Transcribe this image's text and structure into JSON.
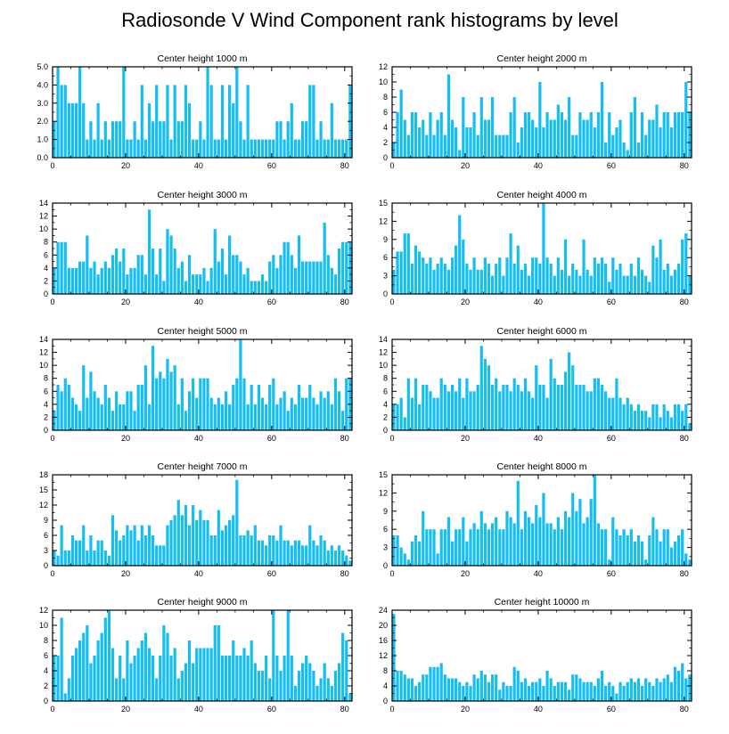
{
  "title": "Radiosonde V Wind Component rank histograms by level",
  "bar_color": "#14BEF2",
  "chart_data": [
    {
      "type": "bar",
      "title": "Center height 1000 m",
      "xlim": [
        0,
        82
      ],
      "ylim": [
        0,
        5
      ],
      "xticks": [
        0,
        20,
        40,
        60,
        80
      ],
      "yticks": [
        0,
        1,
        2,
        3,
        4,
        5
      ],
      "ytick_labels": [
        "0.0",
        "1.0",
        "2.0",
        "3.0",
        "4.0",
        "5.0"
      ],
      "yaxis_side": "left",
      "values": [
        2,
        5,
        4,
        4,
        3,
        3,
        3,
        5,
        3,
        1,
        2,
        1,
        3,
        1,
        2,
        1,
        2,
        2,
        2,
        5,
        1,
        1,
        2,
        1,
        4,
        1,
        3,
        2,
        4,
        2,
        2,
        4,
        1,
        4,
        2,
        2,
        4,
        3,
        1,
        1,
        2,
        1,
        5,
        4,
        1,
        1,
        4,
        1,
        4,
        3,
        5,
        2,
        1,
        4,
        1,
        1,
        1,
        1,
        1,
        1,
        1,
        2,
        2,
        1,
        2,
        3,
        1,
        1,
        2,
        2,
        4,
        4,
        1,
        2,
        1,
        1,
        3,
        1,
        1,
        1,
        1,
        4
      ]
    },
    {
      "type": "bar",
      "title": "Center height 2000 m",
      "xlim": [
        0,
        82
      ],
      "ylim": [
        0,
        12
      ],
      "xticks": [
        0,
        20,
        40,
        60,
        80
      ],
      "yticks": [
        0,
        2,
        4,
        6,
        8,
        10,
        12
      ],
      "ytick_labels": [
        "0",
        "2",
        "4",
        "6",
        "8",
        "10",
        "12"
      ],
      "yaxis_side": "left",
      "values": [
        2,
        6,
        9,
        5,
        3,
        6,
        6,
        4,
        5,
        3,
        6,
        3,
        5,
        6,
        3,
        11,
        5,
        4,
        1,
        8,
        4,
        4,
        6,
        3,
        8,
        5,
        5,
        8,
        3,
        3,
        3,
        3,
        6,
        8,
        2,
        4,
        6,
        6,
        5,
        4,
        10,
        4,
        6,
        5,
        5,
        7,
        6,
        5,
        8,
        3,
        3,
        6,
        5,
        5,
        6,
        4,
        6,
        10,
        2,
        6,
        3,
        4,
        5,
        2,
        1,
        6,
        8,
        2,
        6,
        3,
        5,
        5,
        7,
        4,
        6,
        6,
        4,
        6,
        6,
        6,
        10,
        6
      ]
    },
    {
      "type": "bar",
      "title": "Center height 3000 m",
      "xlim": [
        0,
        82
      ],
      "ylim": [
        0,
        14
      ],
      "xticks": [
        0,
        20,
        40,
        60,
        80
      ],
      "yticks": [
        0,
        2,
        4,
        6,
        8,
        10,
        12,
        14
      ],
      "ytick_labels": [
        "0",
        "2",
        "4",
        "6",
        "8",
        "10",
        "12",
        "14"
      ],
      "yaxis_side": "left",
      "values": [
        4,
        8,
        8,
        8,
        4,
        4,
        4,
        5,
        5,
        9,
        4,
        5,
        3,
        4,
        5,
        4,
        6,
        7,
        5,
        7,
        3,
        4,
        4,
        6,
        6,
        3,
        13,
        7,
        3,
        7,
        2,
        10,
        9,
        7,
        4,
        5,
        2,
        6,
        3,
        3,
        3,
        4,
        2,
        4,
        10,
        5,
        7,
        3,
        9,
        6,
        6,
        5,
        3,
        4,
        2,
        2,
        2,
        3,
        2,
        5,
        6,
        4,
        6,
        8,
        8,
        6,
        4,
        9,
        5,
        5,
        5,
        5,
        5,
        5,
        11,
        6,
        4,
        3,
        7,
        8,
        8,
        8
      ]
    },
    {
      "type": "bar",
      "title": "Center height 4000 m",
      "xlim": [
        0,
        82
      ],
      "ylim": [
        0,
        15
      ],
      "xticks": [
        0,
        20,
        40,
        60,
        80
      ],
      "yticks": [
        0,
        3,
        6,
        9,
        12,
        15
      ],
      "ytick_labels": [
        "0",
        "3",
        "6",
        "9",
        "12",
        "15"
      ],
      "yaxis_side": "left",
      "values": [
        4,
        7,
        7,
        10,
        10,
        5,
        8,
        7,
        6,
        5,
        6,
        4,
        5,
        6,
        5,
        4,
        6,
        8,
        13,
        9,
        5,
        4,
        6,
        4,
        4,
        6,
        5,
        3,
        5,
        6,
        3,
        6,
        10,
        5,
        8,
        4,
        5,
        3,
        6,
        6,
        5,
        15,
        6,
        5,
        3,
        6,
        4,
        9,
        3,
        5,
        4,
        3,
        9,
        4,
        3,
        6,
        5,
        6,
        5,
        2,
        6,
        4,
        5,
        3,
        3,
        5,
        3,
        6,
        4,
        3,
        2,
        8,
        6,
        9,
        4,
        5,
        3,
        4,
        5,
        9,
        10,
        3
      ]
    },
    {
      "type": "bar",
      "title": "Center height 5000 m",
      "xlim": [
        0,
        82
      ],
      "ylim": [
        0,
        14
      ],
      "xticks": [
        0,
        20,
        40,
        60,
        80
      ],
      "yticks": [
        0,
        2,
        4,
        6,
        8,
        10,
        12,
        14
      ],
      "ytick_labels": [
        "0",
        "2",
        "4",
        "6",
        "8",
        "10",
        "12",
        "14"
      ],
      "yaxis_side": "left",
      "values": [
        3,
        7,
        6,
        8,
        7,
        5,
        4,
        3,
        10,
        5,
        9,
        6,
        5,
        4,
        7,
        5,
        3,
        6,
        4,
        4,
        6,
        6,
        3,
        7,
        7,
        10,
        4,
        13,
        8,
        9,
        8,
        11,
        9,
        10,
        4,
        8,
        3,
        6,
        8,
        5,
        8,
        8,
        8,
        5,
        4,
        5,
        4,
        6,
        4,
        7,
        8,
        14,
        8,
        4,
        7,
        4,
        7,
        5,
        4,
        7,
        8,
        4,
        5,
        6,
        3,
        5,
        4,
        7,
        5,
        5,
        7,
        5,
        4,
        6,
        5,
        6,
        4,
        8,
        6,
        3,
        8,
        8
      ]
    },
    {
      "type": "bar",
      "title": "Center height 6000 m",
      "xlim": [
        0,
        82
      ],
      "ylim": [
        0,
        14
      ],
      "xticks": [
        0,
        20,
        40,
        60,
        80
      ],
      "yticks": [
        0,
        2,
        4,
        6,
        8,
        10,
        12,
        14
      ],
      "ytick_labels": [
        "0",
        "2",
        "4",
        "6",
        "8",
        "10",
        "12",
        "14"
      ],
      "yaxis_side": "left",
      "values": [
        4,
        4,
        5,
        2,
        8,
        5,
        8,
        4,
        7,
        7,
        6,
        5,
        5,
        8,
        7,
        6,
        7,
        6,
        8,
        5,
        8,
        6,
        6,
        7,
        13,
        11,
        10,
        7,
        8,
        6,
        7,
        7,
        6,
        8,
        7,
        6,
        8,
        6,
        5,
        10,
        7,
        7,
        5,
        11,
        8,
        7,
        7,
        9,
        12,
        10,
        7,
        7,
        7,
        6,
        6,
        8,
        8,
        7,
        6,
        5,
        5,
        8,
        5,
        4,
        5,
        4,
        3,
        4,
        3,
        3,
        2,
        4,
        4,
        2,
        4,
        3,
        2,
        4,
        4,
        3,
        4,
        1
      ]
    },
    {
      "type": "bar",
      "title": "Center height 7000 m",
      "xlim": [
        0,
        82
      ],
      "ylim": [
        0,
        18
      ],
      "xticks": [
        0,
        20,
        40,
        60,
        80
      ],
      "yticks": [
        0,
        3,
        6,
        9,
        12,
        15,
        18
      ],
      "ytick_labels": [
        "0",
        "3",
        "6",
        "9",
        "12",
        "15",
        "18"
      ],
      "yaxis_side": "left",
      "values": [
        3,
        2,
        8,
        3,
        3,
        6,
        5,
        5,
        8,
        3,
        6,
        3,
        5,
        5,
        3,
        2,
        10,
        7,
        5,
        6,
        8,
        7,
        8,
        5,
        8,
        6,
        8,
        6,
        4,
        4,
        4,
        8,
        9,
        10,
        13,
        10,
        12,
        8,
        12,
        9,
        11,
        9,
        9,
        6,
        6,
        11,
        7,
        8,
        9,
        10,
        17,
        6,
        6,
        7,
        6,
        8,
        5,
        5,
        4,
        6,
        6,
        5,
        8,
        5,
        5,
        4,
        5,
        5,
        4,
        4,
        8,
        5,
        4,
        6,
        5,
        3,
        4,
        3,
        4,
        3,
        2,
        1
      ]
    },
    {
      "type": "bar",
      "title": "Center height 8000 m",
      "xlim": [
        0,
        82
      ],
      "ylim": [
        0,
        15
      ],
      "xticks": [
        0,
        20,
        40,
        60,
        80
      ],
      "yticks": [
        0,
        3,
        6,
        9,
        12,
        15
      ],
      "ytick_labels": [
        "0",
        "3",
        "6",
        "9",
        "12",
        "15"
      ],
      "yaxis_side": "left",
      "values": [
        5,
        5,
        3,
        2,
        1,
        4,
        5,
        4,
        9,
        6,
        6,
        6,
        2,
        6,
        6,
        8,
        4,
        6,
        6,
        8,
        4,
        6,
        7,
        6,
        9,
        7,
        6,
        7,
        8,
        6,
        6,
        9,
        8,
        7,
        14,
        6,
        9,
        8,
        7,
        10,
        8,
        12,
        7,
        7,
        6,
        8,
        6,
        9,
        8,
        12,
        9,
        11,
        7,
        8,
        11,
        15,
        7,
        6,
        6,
        1,
        8,
        6,
        5,
        6,
        5,
        6,
        4,
        5,
        4,
        1,
        5,
        8,
        6,
        4,
        6,
        6,
        3,
        4,
        5,
        6,
        2,
        1
      ]
    },
    {
      "type": "bar",
      "title": "Center height 9000 m",
      "xlim": [
        0,
        82
      ],
      "ylim": [
        0,
        12
      ],
      "xticks": [
        0,
        20,
        40,
        60,
        80
      ],
      "yticks": [
        0,
        2,
        4,
        6,
        8,
        10,
        12
      ],
      "ytick_labels": [
        "0",
        "2",
        "4",
        "6",
        "8",
        "10",
        "12"
      ],
      "yaxis_side": "left",
      "values": [
        6,
        6,
        11,
        1,
        3,
        6,
        7,
        8,
        9,
        10,
        5,
        6,
        8,
        9,
        11,
        12,
        7,
        3,
        6,
        3,
        8,
        5,
        6,
        7,
        8,
        9,
        7,
        6,
        3,
        6,
        10,
        9,
        6,
        7,
        3,
        4,
        5,
        8,
        5,
        7,
        7,
        7,
        7,
        7,
        10,
        10,
        6,
        6,
        6,
        8,
        6,
        6,
        7,
        6,
        8,
        5,
        4,
        4,
        6,
        3,
        12,
        6,
        4,
        6,
        12,
        6,
        2,
        4,
        5,
        6,
        5,
        4,
        2,
        3,
        5,
        3,
        2,
        4,
        5,
        9,
        8,
        1
      ]
    },
    {
      "type": "bar",
      "title": "Center height 10000 m",
      "xlim": [
        0,
        82
      ],
      "ylim": [
        0,
        24
      ],
      "xticks": [
        0,
        20,
        40,
        60,
        80
      ],
      "yticks": [
        0,
        4,
        8,
        12,
        16,
        20,
        24
      ],
      "ytick_labels": [
        "0",
        "4",
        "8",
        "12",
        "16",
        "20",
        "24"
      ],
      "yaxis_side": "left",
      "values": [
        23,
        8,
        8,
        7,
        6,
        6,
        4,
        5,
        7,
        7,
        9,
        9,
        9,
        10,
        7,
        6,
        6,
        6,
        5,
        4,
        5,
        4,
        7,
        6,
        8,
        7,
        5,
        7,
        7,
        3,
        5,
        4,
        4,
        9,
        8,
        5,
        6,
        4,
        5,
        5,
        6,
        4,
        8,
        6,
        4,
        5,
        5,
        5,
        3,
        7,
        7,
        6,
        5,
        5,
        5,
        4,
        6,
        8,
        4,
        5,
        4,
        2,
        5,
        4,
        5,
        6,
        5,
        6,
        4,
        6,
        5,
        4,
        6,
        5,
        6,
        7,
        5,
        9,
        8,
        10,
        6,
        7
      ]
    }
  ]
}
